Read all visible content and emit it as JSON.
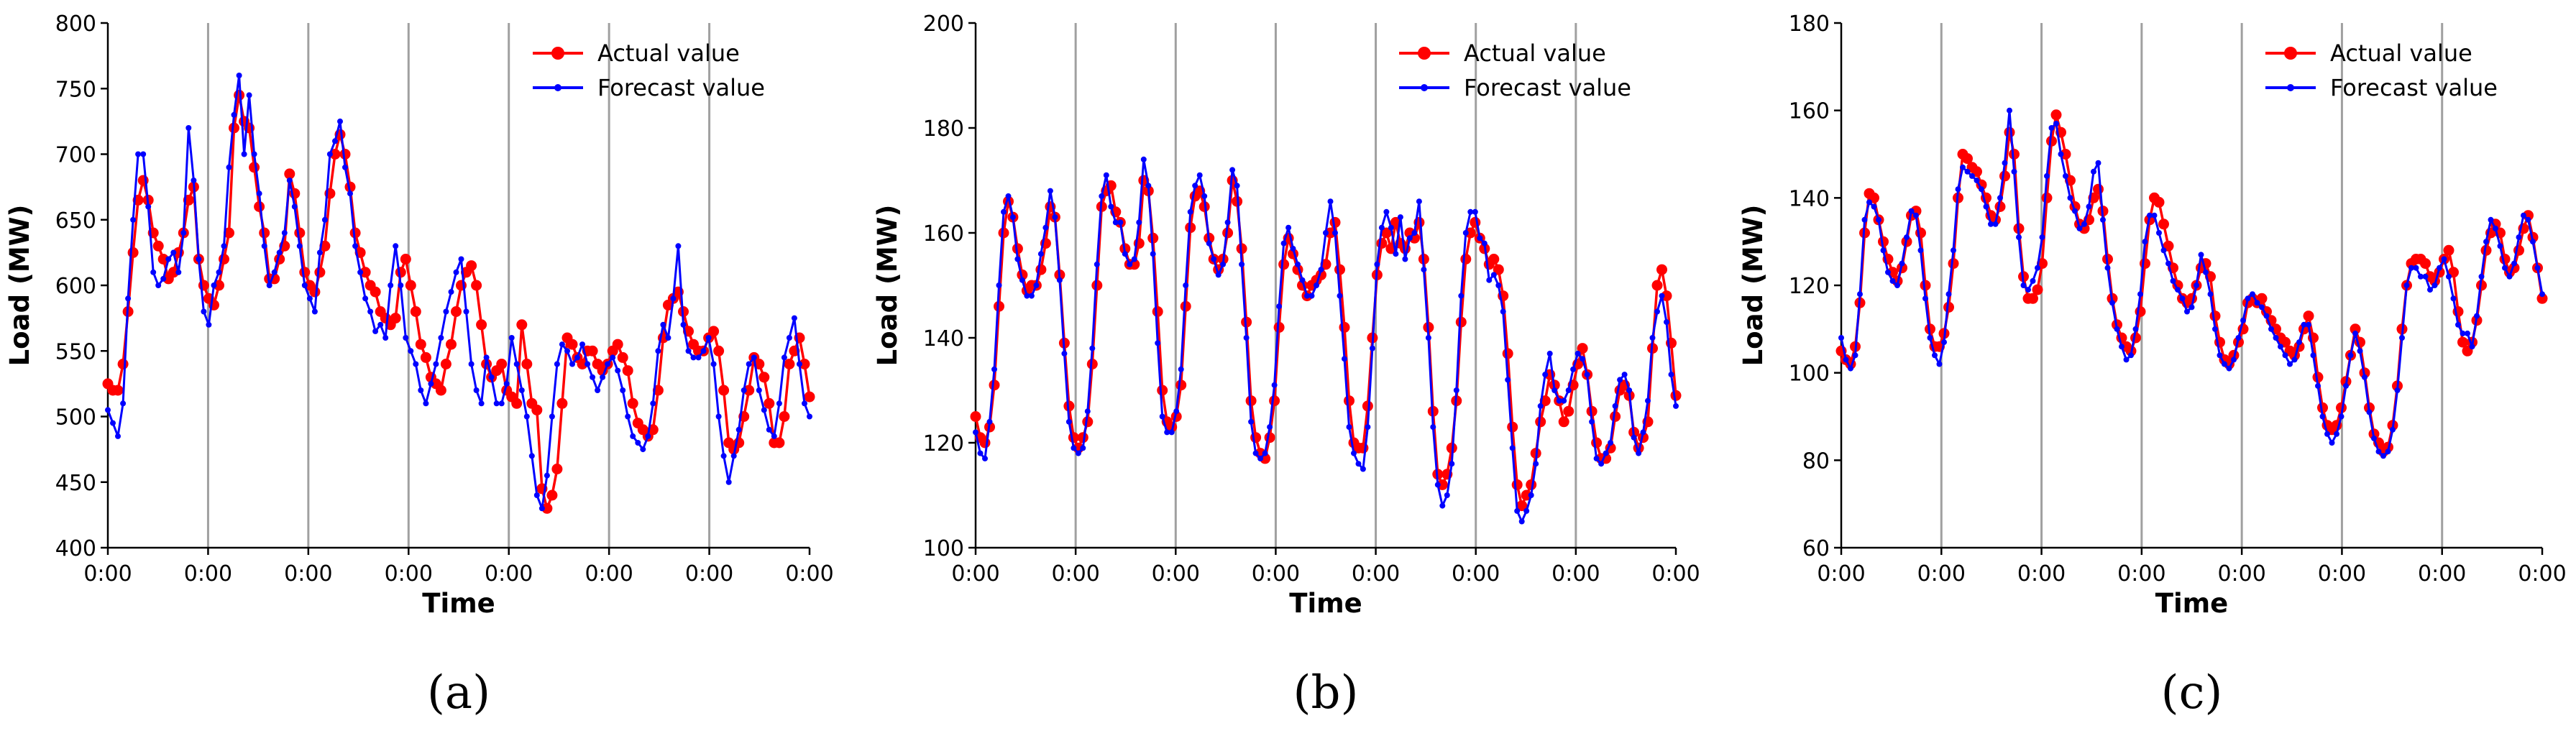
{
  "colors": {
    "actual": "#ff0000",
    "forecast": "#0000ff",
    "grid": "#a0a0a0",
    "axis": "#000000"
  },
  "chart_data": [
    {
      "type": "line",
      "panel_label": "(a)",
      "xlabel": "Time",
      "ylabel": "Load (MW)",
      "ylim": [
        400,
        800
      ],
      "yticks": [
        400,
        450,
        500,
        550,
        600,
        650,
        700,
        750,
        800
      ],
      "xtick_labels": [
        "0:00",
        "0:00",
        "0:00",
        "0:00",
        "0:00",
        "0:00",
        "0:00",
        "0:00"
      ],
      "legend": [
        "Actual value",
        "Forecast value"
      ],
      "legend_position": "top-right",
      "series": [
        {
          "name": "Actual value",
          "values": [
            525,
            520,
            520,
            540,
            580,
            625,
            665,
            680,
            665,
            640,
            630,
            620,
            605,
            610,
            625,
            640,
            665,
            675,
            620,
            600,
            590,
            585,
            600,
            620,
            640,
            720,
            745,
            725,
            720,
            690,
            660,
            640,
            605,
            605,
            620,
            630,
            685,
            670,
            640,
            610,
            600,
            595,
            610,
            630,
            670,
            700,
            715,
            700,
            675,
            640,
            625,
            610,
            600,
            595,
            580,
            575,
            570,
            575,
            610,
            620,
            600,
            580,
            555,
            545,
            530,
            525,
            520,
            540,
            555,
            580,
            600,
            610,
            615,
            600,
            570,
            540,
            530,
            535,
            540,
            520,
            515,
            510,
            570,
            540,
            510,
            505,
            445,
            430,
            440,
            460,
            510,
            560,
            555,
            545,
            540,
            550,
            550,
            540,
            535,
            540,
            550,
            555,
            545,
            535,
            510,
            495,
            490,
            485,
            490,
            520,
            560,
            585,
            590,
            595,
            580,
            565,
            555,
            550,
            550,
            560,
            565,
            550,
            520,
            480,
            475,
            480,
            500,
            520,
            545,
            540,
            530,
            510,
            480,
            480,
            500,
            540,
            550,
            560,
            540,
            515
          ]
        },
        {
          "name": "Forecast value",
          "values": [
            505,
            495,
            485,
            510,
            590,
            650,
            700,
            700,
            660,
            610,
            600,
            605,
            620,
            625,
            610,
            640,
            720,
            680,
            620,
            580,
            570,
            600,
            610,
            630,
            690,
            730,
            760,
            700,
            745,
            700,
            670,
            630,
            600,
            610,
            625,
            640,
            680,
            660,
            630,
            600,
            590,
            580,
            625,
            650,
            700,
            710,
            725,
            690,
            670,
            630,
            610,
            590,
            580,
            565,
            570,
            560,
            600,
            630,
            600,
            560,
            550,
            540,
            520,
            510,
            525,
            540,
            560,
            580,
            595,
            610,
            620,
            580,
            540,
            520,
            510,
            545,
            530,
            510,
            510,
            525,
            560,
            540,
            520,
            500,
            470,
            440,
            430,
            455,
            500,
            540,
            555,
            550,
            540,
            545,
            555,
            540,
            530,
            520,
            530,
            540,
            545,
            535,
            520,
            500,
            485,
            480,
            475,
            485,
            510,
            550,
            570,
            560,
            590,
            630,
            570,
            550,
            545,
            545,
            550,
            560,
            540,
            500,
            470,
            450,
            470,
            490,
            520,
            540,
            545,
            520,
            505,
            490,
            485,
            510,
            545,
            560,
            575,
            540,
            510,
            500
          ]
        }
      ]
    },
    {
      "type": "line",
      "panel_label": "(b)",
      "xlabel": "Time",
      "ylabel": "Load (MW)",
      "ylim": [
        100,
        200
      ],
      "yticks": [
        100,
        120,
        140,
        160,
        180,
        200
      ],
      "xtick_labels": [
        "0:00",
        "0:00",
        "0:00",
        "0:00",
        "0:00",
        "0:00",
        "0:00",
        "0:00"
      ],
      "legend": [
        "Actual value",
        "Forecast value"
      ],
      "legend_position": "top-right",
      "series": [
        {
          "name": "Actual value",
          "values": [
            125,
            121,
            120,
            123,
            131,
            146,
            160,
            166,
            163,
            157,
            152,
            149,
            150,
            150,
            153,
            158,
            165,
            163,
            152,
            139,
            127,
            121,
            119,
            121,
            124,
            135,
            150,
            165,
            168,
            169,
            164,
            162,
            157,
            154,
            154,
            158,
            170,
            168,
            159,
            145,
            130,
            124,
            123,
            125,
            131,
            146,
            161,
            167,
            168,
            165,
            159,
            155,
            153,
            155,
            160,
            170,
            166,
            157,
            143,
            128,
            121,
            118,
            117,
            121,
            128,
            142,
            154,
            159,
            156,
            153,
            150,
            148,
            150,
            151,
            152,
            154,
            160,
            162,
            153,
            142,
            128,
            120,
            119,
            119,
            127,
            140,
            152,
            158,
            160,
            157,
            162,
            158,
            157,
            160,
            159,
            162,
            155,
            142,
            126,
            114,
            112,
            114,
            119,
            128,
            143,
            155,
            160,
            162,
            159,
            157,
            154,
            155,
            153,
            148,
            137,
            123,
            112,
            108,
            110,
            112,
            118,
            124,
            128,
            133,
            131,
            128,
            124,
            126,
            131,
            135,
            138,
            133,
            126,
            120,
            117,
            117,
            119,
            125,
            130,
            131,
            129,
            122,
            119,
            121,
            124,
            138,
            150,
            153,
            148,
            139,
            129
          ]
        },
        {
          "name": "Forecast value",
          "values": [
            122,
            118,
            117,
            124,
            134,
            150,
            164,
            167,
            163,
            155,
            151,
            148,
            148,
            150,
            156,
            161,
            168,
            163,
            151,
            137,
            124,
            119,
            118,
            119,
            126,
            138,
            154,
            167,
            171,
            165,
            162,
            162,
            156,
            154,
            155,
            162,
            174,
            169,
            156,
            139,
            125,
            122,
            122,
            126,
            134,
            150,
            164,
            169,
            171,
            167,
            158,
            155,
            152,
            154,
            162,
            172,
            169,
            154,
            140,
            124,
            118,
            117,
            118,
            123,
            131,
            146,
            158,
            161,
            157,
            154,
            151,
            148,
            148,
            150,
            153,
            160,
            166,
            160,
            148,
            136,
            123,
            118,
            116,
            115,
            123,
            138,
            154,
            161,
            164,
            161,
            156,
            163,
            155,
            159,
            160,
            166,
            153,
            140,
            123,
            112,
            108,
            110,
            116,
            130,
            148,
            160,
            164,
            164,
            159,
            158,
            151,
            152,
            150,
            145,
            132,
            119,
            107,
            105,
            107,
            110,
            116,
            127,
            133,
            137,
            130,
            128,
            128,
            130,
            134,
            137,
            136,
            133,
            124,
            117,
            116,
            118,
            120,
            127,
            132,
            133,
            130,
            121,
            118,
            122,
            128,
            140,
            145,
            148,
            143,
            133,
            127
          ]
        }
      ]
    },
    {
      "type": "line",
      "panel_label": "(c)",
      "xlabel": "Time",
      "ylabel": "Load (MW)",
      "ylim": [
        60,
        180
      ],
      "yticks": [
        60,
        80,
        100,
        120,
        140,
        160,
        180
      ],
      "xtick_labels": [
        "0:00",
        "0:00",
        "0:00",
        "0:00",
        "0:00",
        "0:00",
        "0:00",
        "0:00"
      ],
      "legend": [
        "Actual value",
        "Forecast value"
      ],
      "legend_position": "top-right",
      "series": [
        {
          "name": "Actual value",
          "values": [
            105,
            103,
            102,
            106,
            116,
            132,
            141,
            140,
            135,
            130,
            126,
            123,
            121,
            124,
            130,
            136,
            137,
            132,
            120,
            110,
            106,
            106,
            109,
            115,
            125,
            140,
            150,
            149,
            147,
            146,
            143,
            140,
            136,
            135,
            138,
            145,
            155,
            150,
            133,
            122,
            117,
            117,
            119,
            125,
            140,
            153,
            159,
            155,
            150,
            144,
            138,
            134,
            133,
            135,
            140,
            142,
            137,
            126,
            117,
            111,
            108,
            106,
            105,
            108,
            114,
            125,
            135,
            140,
            139,
            134,
            129,
            124,
            120,
            117,
            116,
            117,
            120,
            124,
            125,
            122,
            113,
            107,
            103,
            102,
            104,
            107,
            110,
            116,
            117,
            116,
            117,
            114,
            112,
            110,
            108,
            107,
            105,
            104,
            106,
            110,
            113,
            108,
            99,
            92,
            88,
            87,
            88,
            92,
            98,
            104,
            110,
            107,
            100,
            92,
            86,
            84,
            82,
            83,
            88,
            97,
            110,
            120,
            125,
            126,
            126,
            125,
            122,
            121,
            123,
            126,
            128,
            123,
            114,
            107,
            105,
            107,
            112,
            120,
            128,
            132,
            134,
            132,
            126,
            123,
            124,
            128,
            133,
            136,
            131,
            124,
            117
          ]
        },
        {
          "name": "Forecast value",
          "values": [
            108,
            103,
            101,
            104,
            118,
            135,
            139,
            138,
            135,
            128,
            123,
            121,
            120,
            125,
            131,
            137,
            136,
            128,
            117,
            108,
            104,
            102,
            107,
            118,
            128,
            142,
            147,
            146,
            145,
            144,
            142,
            138,
            134,
            134,
            140,
            148,
            160,
            146,
            131,
            120,
            119,
            121,
            124,
            131,
            145,
            156,
            157,
            150,
            145,
            140,
            137,
            133,
            134,
            138,
            146,
            148,
            135,
            124,
            116,
            110,
            106,
            103,
            104,
            110,
            118,
            130,
            136,
            136,
            132,
            128,
            125,
            121,
            119,
            117,
            114,
            115,
            120,
            127,
            123,
            118,
            110,
            104,
            102,
            101,
            103,
            108,
            112,
            117,
            118,
            116,
            115,
            113,
            110,
            108,
            106,
            104,
            102,
            103,
            107,
            111,
            111,
            104,
            97,
            90,
            86,
            84,
            86,
            90,
            97,
            104,
            109,
            105,
            99,
            91,
            85,
            82,
            81,
            82,
            87,
            96,
            108,
            120,
            124,
            124,
            122,
            122,
            119,
            120,
            124,
            126,
            122,
            117,
            111,
            109,
            109,
            106,
            113,
            122,
            130,
            135,
            133,
            129,
            124,
            122,
            125,
            131,
            136,
            135,
            130,
            124,
            118
          ]
        }
      ]
    }
  ]
}
